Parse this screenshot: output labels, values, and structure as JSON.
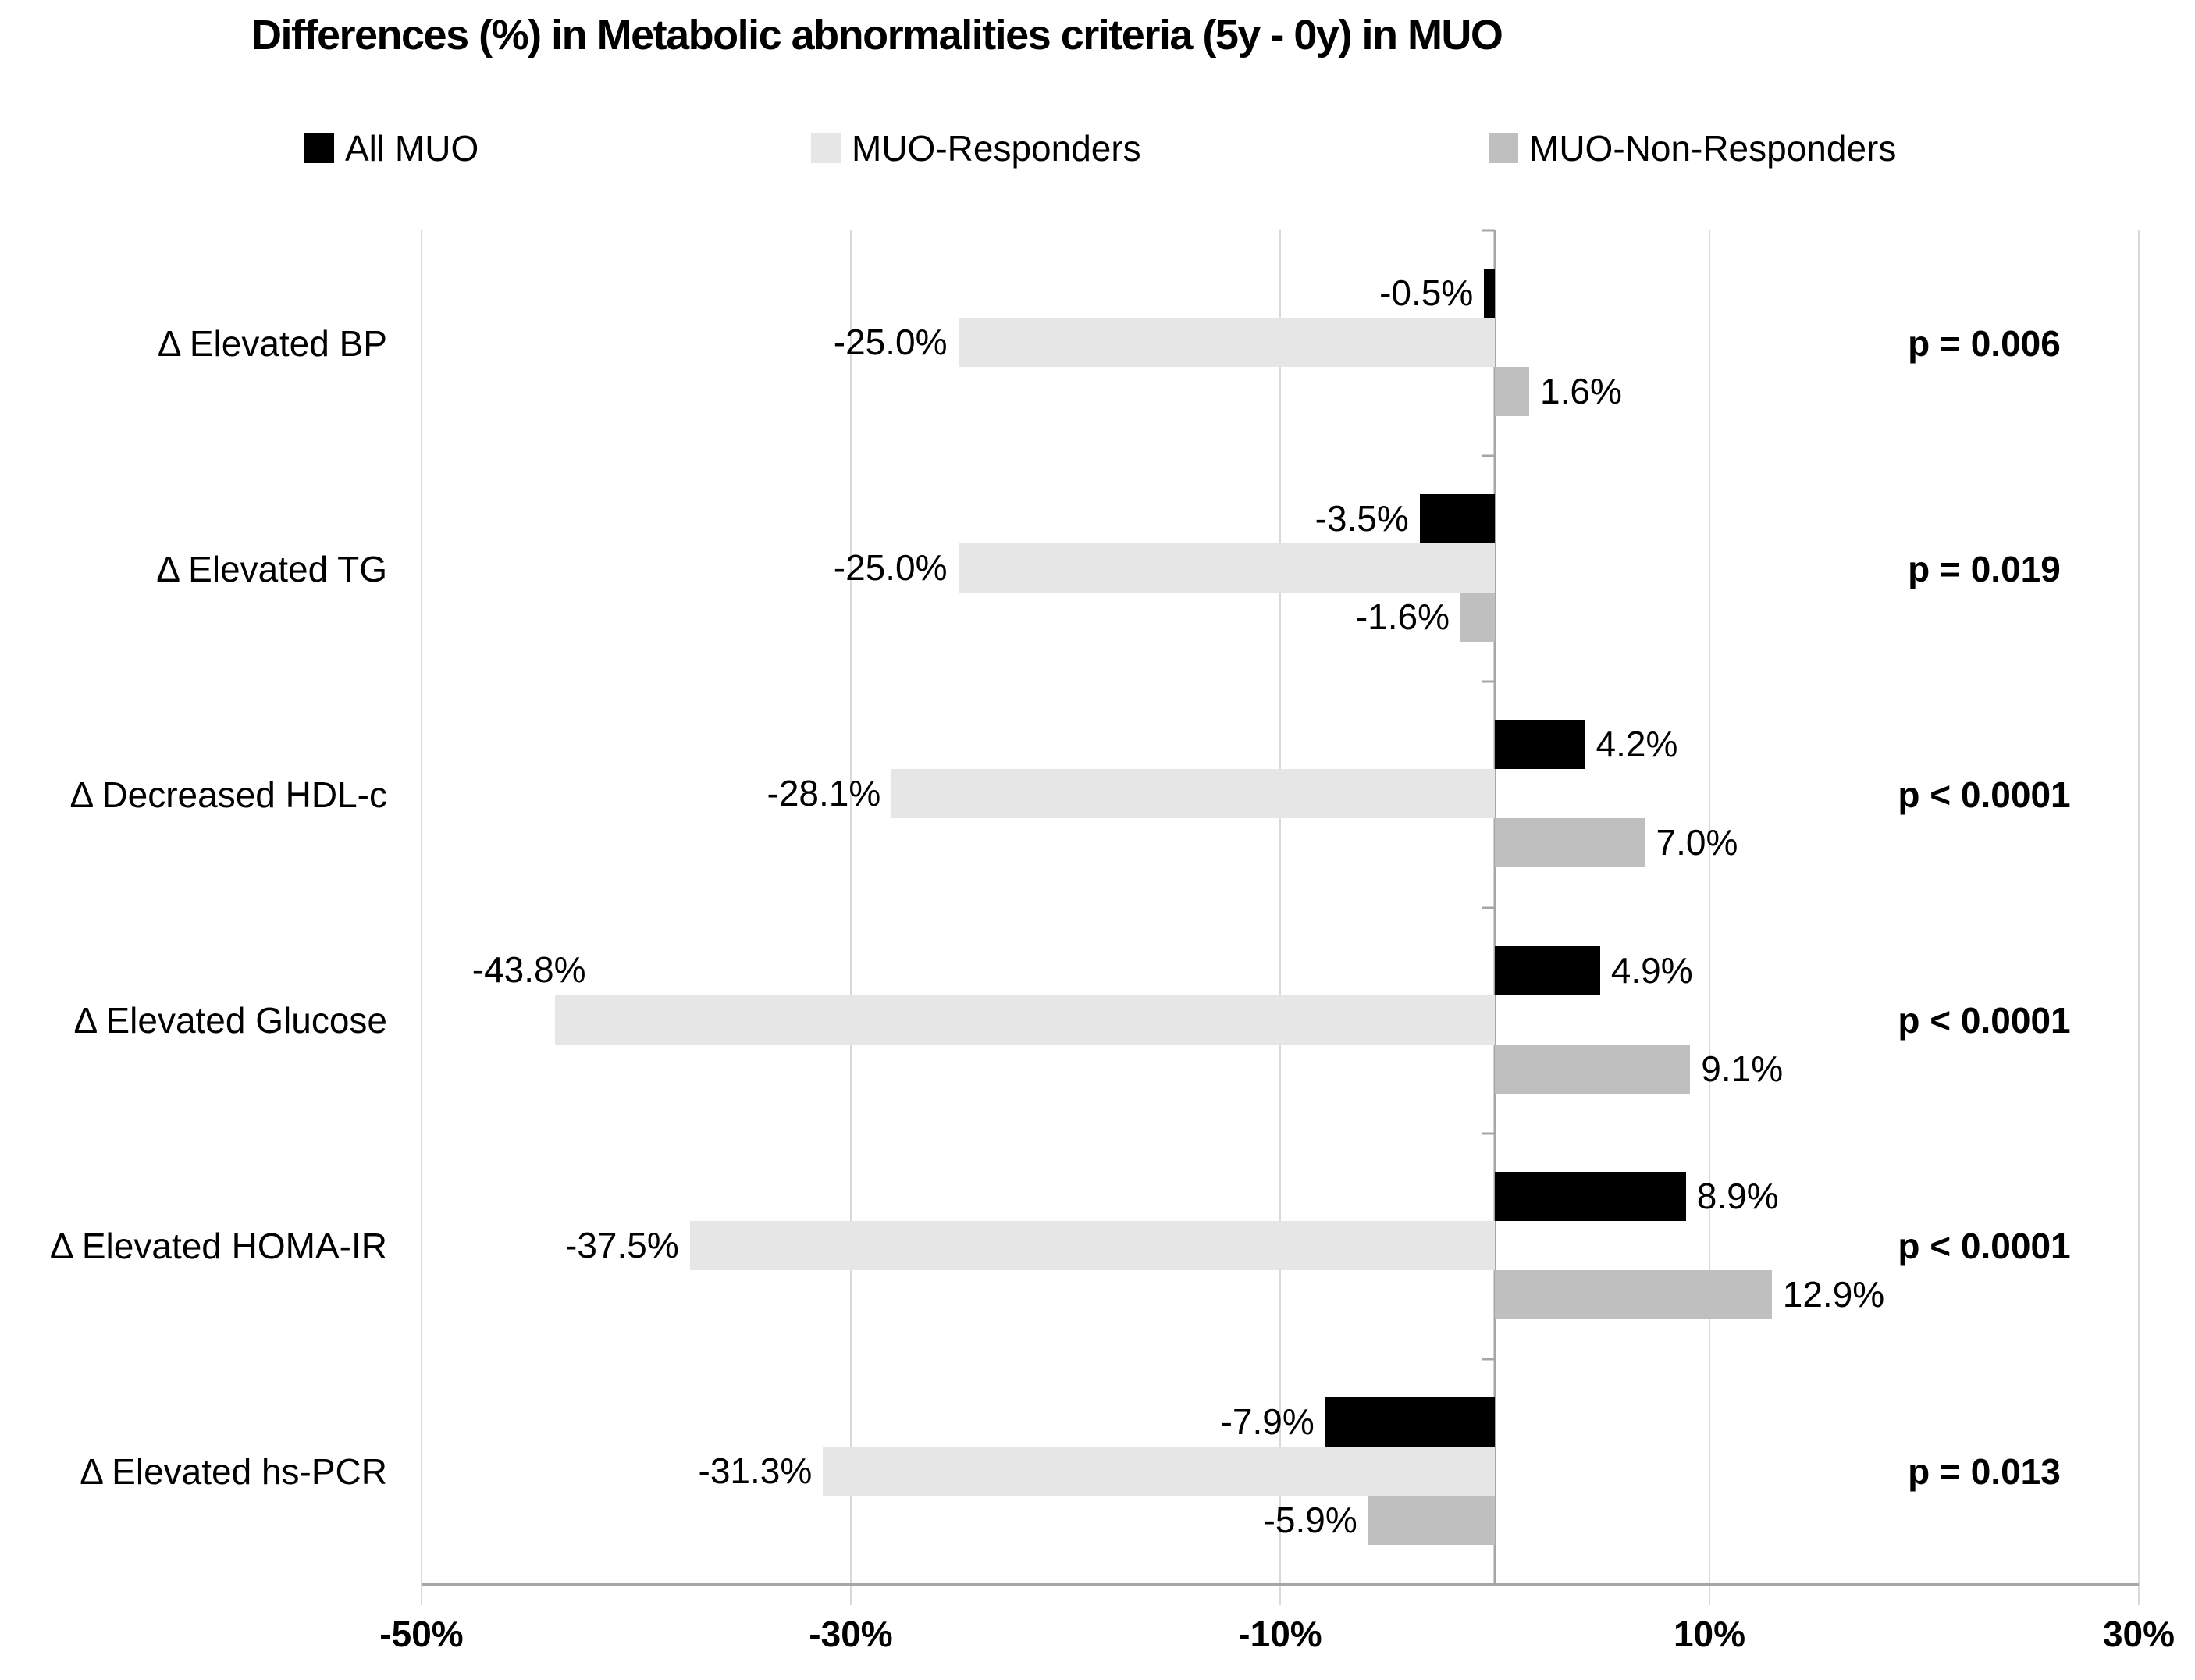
{
  "chart_data": {
    "type": "bar",
    "orientation": "horizontal",
    "title": "Differences (%) in Metabolic abnormalities criteria (5y - 0y) in MUO",
    "legend": [
      {
        "name": "All MUO",
        "color": "#000000"
      },
      {
        "name": "MUO-Responders",
        "color": "#e6e6e6"
      },
      {
        "name": "MUO-Non-Responders",
        "color": "#bfbfbf"
      }
    ],
    "categories": [
      "Δ Elevated BP",
      "Δ Elevated TG",
      "Δ Decreased HDL-c",
      "Δ Elevated Glucose",
      "Δ Elevated HOMA-IR",
      "Δ Elevated hs-PCR"
    ],
    "series": [
      {
        "name": "All MUO",
        "values": [
          -0.5,
          -3.5,
          4.2,
          4.9,
          8.9,
          -7.9
        ],
        "labels": [
          "-0.5%",
          "-3.5%",
          "4.2%",
          "4.9%",
          "8.9%",
          "-7.9%"
        ]
      },
      {
        "name": "MUO-Responders",
        "values": [
          -25.0,
          -25.0,
          -28.1,
          -43.8,
          -37.5,
          -31.3
        ],
        "labels": [
          "-25.0%",
          "-25.0%",
          "-28.1%",
          "-43.8%",
          "-37.5%",
          "-31.3%"
        ]
      },
      {
        "name": "MUO-Non-Responders",
        "values": [
          1.6,
          -1.6,
          7.0,
          9.1,
          12.9,
          -5.9
        ],
        "labels": [
          "1.6%",
          "-1.6%",
          "7.0%",
          "9.1%",
          "12.9%",
          "-5.9%"
        ]
      }
    ],
    "p_values": [
      "p = 0.006",
      "p = 0.019",
      "p < 0.0001",
      "p < 0.0001",
      "p < 0.0001",
      "p = 0.013"
    ],
    "x_axis": {
      "min": -50,
      "max": 30,
      "ticks": [
        -50,
        -30,
        -10,
        10,
        30
      ],
      "tick_labels": [
        "-50%",
        "-30%",
        "-10%",
        "10%",
        "30%"
      ]
    },
    "above_labels": [
      {
        "series": 1,
        "category": 3
      }
    ],
    "grid": true,
    "legend_position": "top",
    "colors": {
      "gridline": "#d9d9d9",
      "axis_line": "#a6a6a6",
      "zero_line": "#a6a6a6",
      "text": "#000000"
    }
  }
}
